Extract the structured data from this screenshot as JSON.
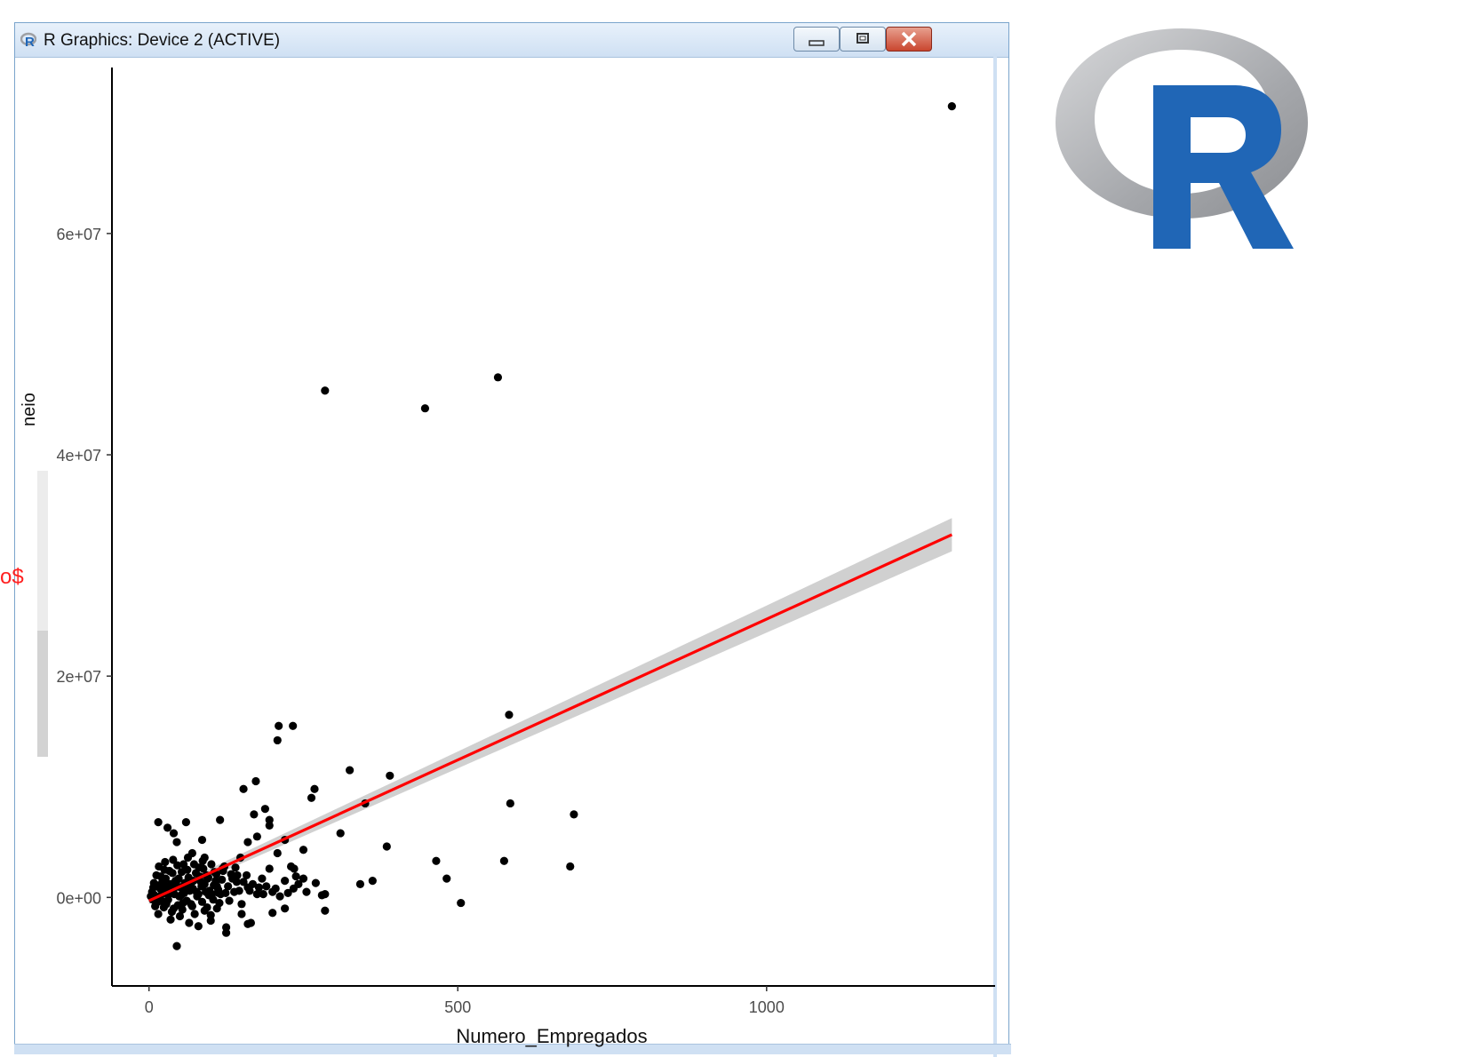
{
  "window": {
    "title": "R Graphics: Device 2 (ACTIVE)",
    "buttons": [
      "minimize",
      "maximize",
      "close"
    ]
  },
  "partial_labels": {
    "y_label_fragment": "neio",
    "red_fragment": "o$"
  },
  "logo": {
    "name": "R",
    "letter": "R"
  },
  "colors": {
    "points": "#000000",
    "fit_line": "#ff0000",
    "ci_band": "#c8c8c8",
    "logo_blue": "#2066b6",
    "logo_ring": "#a9aaad"
  },
  "chart_data": {
    "type": "scatter",
    "title": "",
    "xlabel": "Numero_Empregados",
    "ylabel": "",
    "xlim": [
      -60,
      1370
    ],
    "ylim": [
      -8000000,
      75000000
    ],
    "x_ticks": [
      0,
      500,
      1000
    ],
    "x_tick_labels": [
      "0",
      "500",
      "1000"
    ],
    "y_ticks": [
      0,
      20000000,
      40000000,
      60000000
    ],
    "y_tick_labels": [
      "0e+00",
      "2e+07",
      "4e+07",
      "6e+07"
    ],
    "grid": false,
    "fit": {
      "method": "lm",
      "x_start": 0,
      "x_end": 1300,
      "intercept": -300000,
      "slope": 25450,
      "ci_halfwidth_start": 300000,
      "ci_halfwidth_end": 1500000
    },
    "points": [
      [
        1300,
        71500000
      ],
      [
        565,
        47000000
      ],
      [
        285,
        45800000
      ],
      [
        447,
        44200000
      ],
      [
        583,
        16500000
      ],
      [
        210,
        15500000
      ],
      [
        233,
        15500000
      ],
      [
        208,
        14200000
      ],
      [
        325,
        11500000
      ],
      [
        173,
        10500000
      ],
      [
        390,
        11000000
      ],
      [
        153,
        9800000
      ],
      [
        268,
        9800000
      ],
      [
        263,
        9000000
      ],
      [
        350,
        8500000
      ],
      [
        585,
        8500000
      ],
      [
        688,
        7500000
      ],
      [
        188,
        8000000
      ],
      [
        170,
        7500000
      ],
      [
        115,
        7000000
      ],
      [
        195,
        7000000
      ],
      [
        195,
        6500000
      ],
      [
        15,
        6800000
      ],
      [
        60,
        6800000
      ],
      [
        30,
        6300000
      ],
      [
        40,
        5800000
      ],
      [
        310,
        5800000
      ],
      [
        175,
        5500000
      ],
      [
        86,
        5200000
      ],
      [
        220,
        5200000
      ],
      [
        45,
        5000000
      ],
      [
        160,
        5000000
      ],
      [
        385,
        4600000
      ],
      [
        250,
        4300000
      ],
      [
        208,
        4000000
      ],
      [
        70,
        4000000
      ],
      [
        148,
        3600000
      ],
      [
        90,
        3600000
      ],
      [
        465,
        3300000
      ],
      [
        575,
        3300000
      ],
      [
        682,
        2800000
      ],
      [
        230,
        2800000
      ],
      [
        195,
        2600000
      ],
      [
        235,
        2600000
      ],
      [
        482,
        1700000
      ],
      [
        362,
        1500000
      ],
      [
        342,
        1200000
      ],
      [
        95,
        1700000
      ],
      [
        120,
        2400000
      ],
      [
        143,
        2000000
      ],
      [
        183,
        1700000
      ],
      [
        220,
        1500000
      ],
      [
        238,
        1900000
      ],
      [
        250,
        1700000
      ],
      [
        285,
        300000
      ],
      [
        280,
        200000
      ],
      [
        234,
        800000
      ],
      [
        200,
        500000
      ],
      [
        175,
        300000
      ],
      [
        160,
        900000
      ],
      [
        150,
        -600000
      ],
      [
        130,
        -300000
      ],
      [
        110,
        -1000000
      ],
      [
        90,
        -1200000
      ],
      [
        70,
        -800000
      ],
      [
        55,
        -500000
      ],
      [
        40,
        -1000000
      ],
      [
        28,
        -600000
      ],
      [
        20,
        -300000
      ],
      [
        15,
        -1500000
      ],
      [
        10,
        -800000
      ],
      [
        35,
        -2000000
      ],
      [
        50,
        -1700000
      ],
      [
        65,
        -2300000
      ],
      [
        80,
        -2600000
      ],
      [
        100,
        -2100000
      ],
      [
        125,
        -2700000
      ],
      [
        150,
        -1500000
      ],
      [
        165,
        -2300000
      ],
      [
        200,
        -1400000
      ],
      [
        220,
        -1000000
      ],
      [
        285,
        -1200000
      ],
      [
        505,
        -500000
      ],
      [
        45,
        -4400000
      ],
      [
        125,
        -3200000
      ],
      [
        160,
        -2400000
      ],
      [
        100,
        -1600000
      ],
      [
        110,
        1000000
      ],
      [
        5,
        500000
      ],
      [
        8,
        1300000
      ],
      [
        12,
        2000000
      ],
      [
        18,
        800000
      ],
      [
        22,
        1500000
      ],
      [
        25,
        2500000
      ],
      [
        30,
        300000
      ],
      [
        35,
        1200000
      ],
      [
        38,
        2200000
      ],
      [
        42,
        900000
      ],
      [
        48,
        1700000
      ],
      [
        52,
        200000
      ],
      [
        58,
        1300000
      ],
      [
        62,
        2500000
      ],
      [
        66,
        600000
      ],
      [
        72,
        1500000
      ],
      [
        76,
        2200000
      ],
      [
        80,
        300000
      ],
      [
        85,
        1000000
      ],
      [
        88,
        2600000
      ],
      [
        92,
        500000
      ],
      [
        96,
        1800000
      ],
      [
        102,
        300000
      ],
      [
        106,
        2300000
      ],
      [
        112,
        700000
      ],
      [
        118,
        1600000
      ],
      [
        122,
        2800000
      ],
      [
        128,
        1000000
      ],
      [
        133,
        2100000
      ],
      [
        138,
        500000
      ],
      [
        142,
        1400000
      ],
      [
        6,
        -200000
      ],
      [
        9,
        200000
      ],
      [
        14,
        -400000
      ],
      [
        17,
        1100000
      ],
      [
        21,
        300000
      ],
      [
        24,
        -900000
      ],
      [
        27,
        1700000
      ],
      [
        31,
        -200000
      ],
      [
        34,
        700000
      ],
      [
        37,
        -1300000
      ],
      [
        41,
        300000
      ],
      [
        44,
        1400000
      ],
      [
        47,
        -700000
      ],
      [
        51,
        900000
      ],
      [
        54,
        -1100000
      ],
      [
        57,
        400000
      ],
      [
        61,
        -300000
      ],
      [
        64,
        1800000
      ],
      [
        68,
        -600000
      ],
      [
        71,
        800000
      ],
      [
        74,
        -1500000
      ],
      [
        78,
        100000
      ],
      [
        82,
        1900000
      ],
      [
        86,
        -400000
      ],
      [
        90,
        1200000
      ],
      [
        94,
        -900000
      ],
      [
        98,
        600000
      ],
      [
        104,
        -200000
      ],
      [
        108,
        1500000
      ],
      [
        114,
        -500000
      ],
      [
        116,
        300000
      ],
      [
        3,
        100000
      ],
      [
        7,
        900000
      ],
      [
        11,
        -100000
      ],
      [
        16,
        2800000
      ],
      [
        19,
        1900000
      ],
      [
        23,
        600000
      ],
      [
        26,
        3200000
      ],
      [
        29,
        1000000
      ],
      [
        33,
        2400000
      ],
      [
        36,
        400000
      ],
      [
        39,
        3400000
      ],
      [
        43,
        1500000
      ],
      [
        46,
        2900000
      ],
      [
        49,
        100000
      ],
      [
        53,
        2300000
      ],
      [
        56,
        3000000
      ],
      [
        59,
        800000
      ],
      [
        63,
        3600000
      ],
      [
        67,
        1100000
      ],
      [
        73,
        3000000
      ],
      [
        77,
        500000
      ],
      [
        81,
        2700000
      ],
      [
        84,
        1400000
      ],
      [
        87,
        3300000
      ],
      [
        93,
        2000000
      ],
      [
        97,
        200000
      ],
      [
        101,
        3000000
      ],
      [
        105,
        1100000
      ],
      [
        109,
        2100000
      ],
      [
        113,
        400000
      ],
      [
        119,
        2600000
      ],
      [
        124,
        400000
      ],
      [
        135,
        1700000
      ],
      [
        140,
        2700000
      ],
      [
        146,
        600000
      ],
      [
        153,
        1400000
      ],
      [
        158,
        2000000
      ],
      [
        163,
        600000
      ],
      [
        168,
        1200000
      ],
      [
        178,
        900000
      ],
      [
        185,
        300000
      ],
      [
        190,
        1000000
      ],
      [
        205,
        800000
      ],
      [
        212,
        100000
      ],
      [
        225,
        400000
      ],
      [
        242,
        1200000
      ],
      [
        255,
        500000
      ],
      [
        270,
        1300000
      ]
    ]
  }
}
